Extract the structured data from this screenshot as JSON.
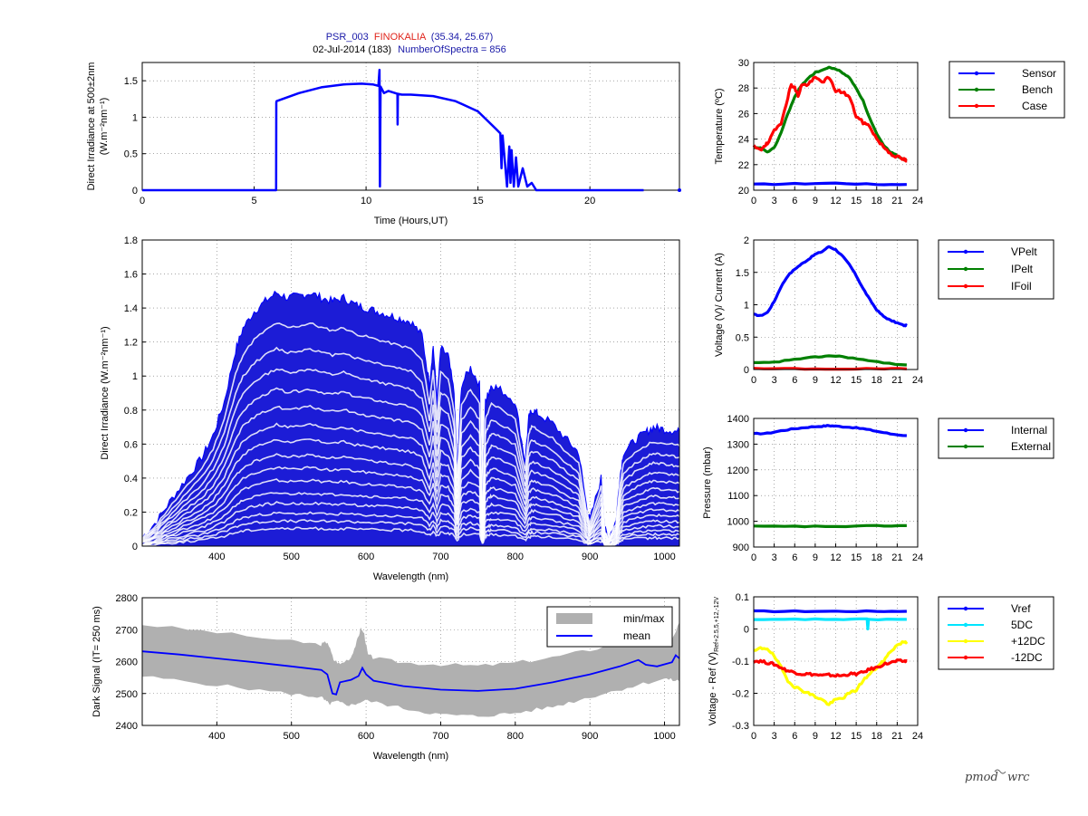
{
  "header": {
    "line1_a": "PSR_003",
    "line1_b": "FINOKALIA",
    "line1_c": "(35.34, 25.67)",
    "line2_a": "02-Jul-2014 (183)",
    "line2_b": "NumberOfSpectra = 856"
  },
  "logo": {
    "text_a": "pmod",
    "text_b": "wrc"
  },
  "colors": {
    "blue": "#0000ff",
    "darkblue": "#1c1cd6",
    "green": "#008000",
    "red": "#ff0000",
    "cyan": "#00e5ff",
    "yellow": "#ffff00",
    "gray": "#b0b0b0",
    "title_blue": "#1a1aa8",
    "title_red": "#e0241b"
  },
  "chart_data": [
    {
      "id": "irr500",
      "type": "line",
      "xlabel": "Time (Hours,UT)",
      "ylabel_1": "Direct Irradiance at 500±2nm",
      "ylabel_2": "(W.m⁻²nm⁻¹)",
      "xlim": [
        0,
        24
      ],
      "ylim": [
        0,
        1.75
      ],
      "xticks": [
        "0",
        "5",
        "10",
        "15",
        "20"
      ],
      "yticks": [
        "0",
        "0.5",
        "1",
        "1.5"
      ],
      "series": [
        {
          "color": "blue",
          "x": [
            0,
            5.98,
            5.99,
            6.0,
            7,
            8,
            9,
            9.8,
            10.3,
            10.55,
            10.6,
            10.62,
            10.65,
            10.8,
            11.0,
            11.4,
            11.41,
            11.42,
            11.6,
            12,
            13,
            14,
            15,
            15.8,
            16.0,
            16.05,
            16.1,
            16.3,
            16.4,
            16.45,
            16.5,
            16.6,
            16.7,
            16.8,
            17.0,
            17.2,
            17.4,
            17.6,
            18,
            20,
            22.4
          ],
          "y": [
            0,
            0,
            1.2,
            1.22,
            1.33,
            1.41,
            1.45,
            1.46,
            1.45,
            1.43,
            1.65,
            0.05,
            1.42,
            1.33,
            1.36,
            1.32,
            0.9,
            1.32,
            1.31,
            1.31,
            1.29,
            1.22,
            1.08,
            0.84,
            0.78,
            0.3,
            0.75,
            0.05,
            0.6,
            0.1,
            0.55,
            0.05,
            0.45,
            0.05,
            0.3,
            0.05,
            0.1,
            0,
            0,
            0,
            0
          ]
        },
        {
          "color": "blue",
          "x": [
            24
          ],
          "y": [
            0
          ]
        }
      ]
    },
    {
      "id": "spectra",
      "type": "area",
      "xlabel": "Wavelength (nm)",
      "ylabel": "Direct Irradiance (W.m⁻²nm⁻¹)",
      "xlim": [
        300,
        1020
      ],
      "ylim": [
        0,
        1.8
      ],
      "xticks": [
        "400",
        "500",
        "600",
        "700",
        "800",
        "900",
        "1000"
      ],
      "yticks": [
        "0",
        "0.2",
        "0.4",
        "0.6",
        "0.8",
        "1",
        "1.2",
        "1.4",
        "1.6",
        "1.8"
      ],
      "envelope": {
        "x": [
          300,
          320,
          340,
          360,
          380,
          395,
          410,
          425,
          435,
          450,
          465,
          480,
          495,
          510,
          525,
          540,
          555,
          570,
          585,
          600,
          615,
          630,
          645,
          660,
          675,
          685,
          690,
          695,
          700,
          710,
          718,
          722,
          728,
          740,
          752,
          756,
          760,
          764,
          768,
          780,
          800,
          813,
          818,
          822,
          830,
          850,
          870,
          885,
          895,
          900,
          915,
          920,
          925,
          935,
          940,
          945,
          960,
          975,
          985,
          995,
          1010,
          1020
        ],
        "y": [
          0.05,
          0.15,
          0.28,
          0.4,
          0.52,
          0.65,
          0.85,
          1.15,
          1.28,
          1.38,
          1.44,
          1.49,
          1.46,
          1.47,
          1.49,
          1.46,
          1.44,
          1.46,
          1.42,
          1.4,
          1.38,
          1.36,
          1.34,
          1.32,
          1.24,
          0.95,
          1.18,
          0.85,
          1.16,
          1.12,
          0.9,
          0.45,
          0.95,
          1.05,
          0.95,
          0.2,
          0.85,
          0.9,
          0.95,
          0.92,
          0.85,
          0.5,
          0.75,
          0.8,
          0.78,
          0.72,
          0.62,
          0.55,
          0.25,
          0.15,
          0.4,
          0.1,
          0.05,
          0.15,
          0.4,
          0.55,
          0.62,
          0.67,
          0.7,
          0.69,
          0.68,
          0.67
        ]
      },
      "bands": [
        0.88,
        0.78,
        0.7,
        0.62,
        0.55,
        0.48,
        0.42,
        0.36,
        0.31,
        0.26,
        0.21,
        0.17,
        0.13,
        0.1,
        0.07
      ]
    },
    {
      "id": "dark",
      "type": "line",
      "xlabel": "Wavelength (nm)",
      "ylabel": "Dark Signal (IT= 250 ms)",
      "xlim": [
        300,
        1020
      ],
      "ylim": [
        2400,
        2800
      ],
      "xticks": [
        "400",
        "500",
        "600",
        "700",
        "800",
        "900",
        "1000"
      ],
      "yticks": [
        "2400",
        "2500",
        "2600",
        "2700",
        "2800"
      ],
      "legend": [
        "min/max",
        "mean"
      ],
      "mean": {
        "x": [
          300,
          350,
          400,
          450,
          500,
          540,
          548,
          555,
          560,
          565,
          580,
          590,
          595,
          600,
          610,
          650,
          700,
          750,
          800,
          850,
          900,
          940,
          965,
          975,
          990,
          1010,
          1015,
          1020
        ],
        "y": [
          2632,
          2622,
          2610,
          2598,
          2585,
          2574,
          2560,
          2500,
          2497,
          2535,
          2543,
          2555,
          2580,
          2560,
          2540,
          2523,
          2512,
          2508,
          2515,
          2535,
          2560,
          2585,
          2605,
          2590,
          2585,
          2598,
          2620,
          2610
        ]
      },
      "min": {
        "x": [
          300,
          400,
          500,
          540,
          550,
          560,
          580,
          600,
          650,
          700,
          750,
          800,
          850,
          900,
          950,
          1000,
          1020
        ],
        "y": [
          2555,
          2528,
          2500,
          2490,
          2470,
          2475,
          2465,
          2480,
          2455,
          2435,
          2430,
          2440,
          2460,
          2490,
          2520,
          2548,
          2540
        ]
      },
      "max": {
        "x": [
          300,
          400,
          500,
          540,
          548,
          556,
          565,
          580,
          588,
          593,
          597,
          602,
          610,
          650,
          700,
          750,
          800,
          850,
          900,
          950,
          975,
          990,
          1010,
          1020
        ],
        "y": [
          2715,
          2690,
          2662,
          2652,
          2660,
          2605,
          2590,
          2612,
          2660,
          2700,
          2685,
          2620,
          2610,
          2595,
          2590,
          2585,
          2595,
          2612,
          2635,
          2662,
          2690,
          2650,
          2662,
          2720
        ]
      }
    },
    {
      "id": "temp",
      "type": "line",
      "ylabel": "Temperature (ºC)",
      "xlim": [
        0,
        24
      ],
      "ylim": [
        20,
        30
      ],
      "xticks": [
        "0",
        "3",
        "6",
        "9",
        "12",
        "15",
        "18",
        "21",
        "24"
      ],
      "yticks": [
        "20",
        "22",
        "24",
        "26",
        "28",
        "30"
      ],
      "series": [
        {
          "name": "Sensor",
          "color": "blue",
          "x": [
            0,
            6,
            12,
            18,
            22.4
          ],
          "y": [
            20.45,
            20.5,
            20.55,
            20.45,
            20.45
          ]
        },
        {
          "name": "Bench",
          "color": "green",
          "x": [
            0,
            1,
            2,
            3,
            4,
            5,
            6,
            7,
            8,
            9,
            10,
            11,
            12,
            13,
            14,
            15,
            16,
            17,
            18,
            19,
            20,
            21,
            22,
            22.4
          ],
          "y": [
            23.3,
            23.3,
            23.0,
            23.3,
            24.5,
            26.0,
            27.3,
            28.2,
            28.8,
            29.2,
            29.4,
            29.6,
            29.5,
            29.2,
            28.8,
            28.0,
            27.0,
            25.6,
            24.4,
            23.5,
            23.0,
            22.7,
            22.4,
            22.3
          ]
        },
        {
          "name": "Case",
          "color": "red",
          "x": [
            0,
            1,
            1.5,
            2,
            3,
            4,
            5,
            5.5,
            6,
            6.5,
            7,
            8,
            9,
            10,
            11,
            12,
            13,
            14,
            15,
            16,
            17,
            18,
            19,
            20,
            21,
            22,
            22.4
          ],
          "y": [
            23.4,
            23.1,
            23.5,
            23.6,
            24.6,
            25.3,
            27.3,
            28.3,
            28.0,
            27.4,
            28.2,
            28.3,
            28.8,
            28.5,
            28.8,
            27.8,
            27.7,
            27.3,
            25.8,
            25.3,
            25.0,
            24.0,
            23.4,
            22.9,
            22.6,
            22.4,
            22.3
          ]
        }
      ]
    },
    {
      "id": "volt",
      "type": "line",
      "ylabel": "Voltage (V)/ Current (A)",
      "xlim": [
        0,
        24
      ],
      "ylim": [
        0,
        2
      ],
      "xticks": [
        "0",
        "3",
        "6",
        "9",
        "12",
        "15",
        "18",
        "21",
        "24"
      ],
      "yticks": [
        "0",
        "0.5",
        "1",
        "1.5",
        "2"
      ],
      "series": [
        {
          "name": "VPelt",
          "color": "blue",
          "x": [
            0,
            1,
            2,
            3,
            4,
            5,
            6,
            7,
            8,
            9,
            10,
            11,
            12,
            13,
            14,
            15,
            16,
            17,
            18,
            19,
            20,
            21,
            22,
            22.4
          ],
          "y": [
            0.85,
            0.83,
            0.88,
            1.05,
            1.28,
            1.45,
            1.55,
            1.63,
            1.7,
            1.78,
            1.82,
            1.9,
            1.85,
            1.75,
            1.62,
            1.45,
            1.25,
            1.08,
            0.92,
            0.82,
            0.76,
            0.72,
            0.68,
            0.68
          ]
        },
        {
          "name": "IPelt",
          "color": "green",
          "x": [
            0,
            3,
            6,
            9,
            11,
            13,
            16,
            19,
            22.4
          ],
          "y": [
            0.1,
            0.11,
            0.16,
            0.19,
            0.21,
            0.2,
            0.15,
            0.1,
            0.07
          ]
        },
        {
          "name": "IFoil",
          "color": "red",
          "x": [
            0,
            6,
            12,
            18,
            22.4
          ],
          "y": [
            0.01,
            0.01,
            0.01,
            0.01,
            0.01
          ]
        }
      ]
    },
    {
      "id": "press",
      "type": "line",
      "ylabel": "Pressure (mbar)",
      "xlim": [
        0,
        24
      ],
      "ylim": [
        900,
        1400
      ],
      "xticks": [
        "0",
        "3",
        "6",
        "9",
        "12",
        "15",
        "18",
        "21",
        "24"
      ],
      "yticks": [
        "900",
        "1000",
        "1100",
        "1200",
        "1300",
        "1400"
      ],
      "series": [
        {
          "name": "Internal",
          "color": "blue",
          "x": [
            0,
            2,
            4,
            6,
            8,
            10,
            11,
            12,
            14,
            16,
            18,
            20,
            22.4
          ],
          "y": [
            1340,
            1342,
            1352,
            1360,
            1366,
            1370,
            1372,
            1370,
            1366,
            1360,
            1350,
            1340,
            1333
          ]
        },
        {
          "name": "External",
          "color": "green",
          "x": [
            0,
            6,
            12,
            18,
            22.4
          ],
          "y": [
            980,
            980,
            980,
            982,
            983
          ]
        }
      ]
    },
    {
      "id": "ref",
      "type": "line",
      "ylabel": "Voltage - Ref (V)",
      "ylabel_sub": "Ref+2.5,5,+12,-12V",
      "xlim": [
        0,
        24
      ],
      "ylim": [
        -0.3,
        0.1
      ],
      "xticks": [
        "0",
        "3",
        "6",
        "9",
        "12",
        "15",
        "18",
        "21",
        "24"
      ],
      "yticks": [
        "-0.3",
        "-0.2",
        "-0.1",
        "0",
        "0.1"
      ],
      "series": [
        {
          "name": "Vref",
          "color": "blue",
          "x": [
            0,
            6,
            12,
            18,
            22.4
          ],
          "y": [
            0.055,
            0.055,
            0.055,
            0.055,
            0.055
          ]
        },
        {
          "name": "5DC",
          "color": "cyan",
          "x": [
            0,
            6,
            12,
            16.6,
            16.7,
            16.8,
            22.4
          ],
          "y": [
            0.028,
            0.03,
            0.03,
            0.03,
            0.0,
            0.03,
            0.03
          ]
        },
        {
          "name": "+12DC",
          "color": "yellow",
          "x": [
            0,
            1,
            2,
            3,
            4,
            5,
            6,
            7,
            8,
            9,
            10,
            11,
            12,
            13,
            14,
            15,
            16,
            17,
            18,
            19,
            20,
            21,
            22,
            22.4
          ],
          "y": [
            -0.07,
            -0.06,
            -0.06,
            -0.085,
            -0.12,
            -0.16,
            -0.18,
            -0.19,
            -0.2,
            -0.21,
            -0.22,
            -0.235,
            -0.22,
            -0.215,
            -0.2,
            -0.19,
            -0.16,
            -0.14,
            -0.12,
            -0.1,
            -0.07,
            -0.05,
            -0.04,
            -0.04
          ]
        },
        {
          "name": "-12DC",
          "color": "red",
          "x": [
            0,
            1,
            2,
            3,
            4,
            5,
            6,
            7,
            8,
            9,
            10,
            11,
            12,
            13,
            14,
            15,
            16,
            17,
            18,
            19,
            20,
            21,
            22,
            22.4
          ],
          "y": [
            -0.1,
            -0.1,
            -0.105,
            -0.11,
            -0.12,
            -0.13,
            -0.135,
            -0.14,
            -0.14,
            -0.142,
            -0.145,
            -0.143,
            -0.145,
            -0.145,
            -0.14,
            -0.14,
            -0.135,
            -0.125,
            -0.12,
            -0.11,
            -0.105,
            -0.1,
            -0.1,
            -0.1
          ]
        }
      ]
    }
  ]
}
